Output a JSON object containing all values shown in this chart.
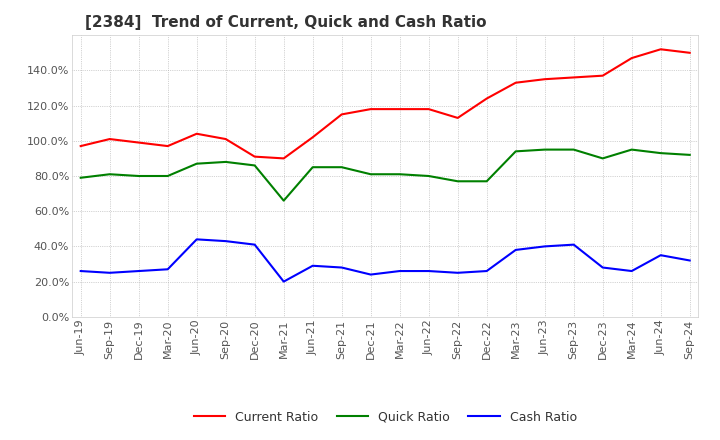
{
  "title": "[2384]  Trend of Current, Quick and Cash Ratio",
  "x_labels": [
    "Jun-19",
    "Sep-19",
    "Dec-19",
    "Mar-20",
    "Jun-20",
    "Sep-20",
    "Dec-20",
    "Mar-21",
    "Jun-21",
    "Sep-21",
    "Dec-21",
    "Mar-22",
    "Jun-22",
    "Sep-22",
    "Dec-22",
    "Mar-23",
    "Jun-23",
    "Sep-23",
    "Dec-23",
    "Mar-24",
    "Jun-24",
    "Sep-24"
  ],
  "current_ratio": [
    97,
    101,
    99,
    97,
    104,
    101,
    91,
    90,
    102,
    115,
    118,
    118,
    118,
    113,
    124,
    133,
    135,
    136,
    137,
    147,
    152,
    150
  ],
  "quick_ratio": [
    79,
    81,
    80,
    80,
    87,
    88,
    86,
    66,
    85,
    85,
    81,
    81,
    80,
    77,
    77,
    94,
    95,
    95,
    90,
    95,
    93,
    92
  ],
  "cash_ratio": [
    26,
    25,
    26,
    27,
    44,
    43,
    41,
    20,
    29,
    28,
    24,
    26,
    26,
    25,
    26,
    38,
    40,
    41,
    28,
    26,
    35,
    32
  ],
  "ylim": [
    0,
    160
  ],
  "yticks": [
    0,
    20,
    40,
    60,
    80,
    100,
    120,
    140
  ],
  "line_colors": {
    "current": "#ff0000",
    "quick": "#008000",
    "cash": "#0000ff"
  },
  "fig_bg_color": "#ffffff",
  "plot_bg_color": "#ffffff",
  "grid_color": "#aaaaaa",
  "legend_labels": [
    "Current Ratio",
    "Quick Ratio",
    "Cash Ratio"
  ],
  "title_fontsize": 11,
  "tick_fontsize": 8,
  "legend_fontsize": 9
}
